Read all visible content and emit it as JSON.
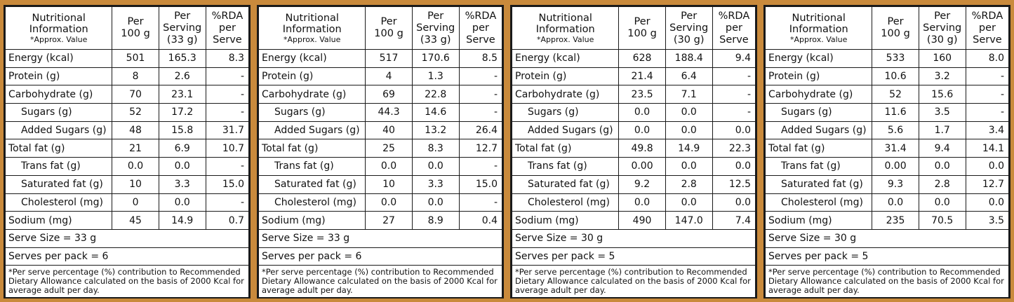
{
  "headers": {
    "info_line1": "Nutritional",
    "info_line2": "Information",
    "info_sub": "*Approx. Value",
    "per100_line1": "Per",
    "per100_line2": "100 g",
    "serving_line1": "Per",
    "serving_line2": "Serving",
    "rda_line1": "%RDA",
    "rda_line2": "per",
    "rda_line3": "Serve"
  },
  "footnote": "*Per serve percentage (%) contribution to Recommended Dietary Allowance calculated on the basis of 2000 Kcal for average adult per day.",
  "panels": [
    {
      "serving_size_label": "(33 g)",
      "rows": [
        {
          "label": "Energy (kcal)",
          "per100": "501",
          "serving": "165.3",
          "rda": "8.3"
        },
        {
          "label": "Protein (g)",
          "per100": "8",
          "serving": "2.6",
          "rda": "-"
        },
        {
          "label": "Carbohydrate (g)",
          "per100": "70",
          "serving": "23.1",
          "rda": "-"
        },
        {
          "label": "Sugars (g)",
          "per100": "52",
          "serving": "17.2",
          "rda": "-"
        },
        {
          "label": "Added Sugars (g)",
          "per100": "48",
          "serving": "15.8",
          "rda": "31.7"
        },
        {
          "label": "Total fat (g)",
          "per100": "21",
          "serving": "6.9",
          "rda": "10.7"
        },
        {
          "label": "Trans fat (g)",
          "per100": "0.0",
          "serving": "0.0",
          "rda": "-"
        },
        {
          "label": "Saturated fat (g)",
          "per100": "10",
          "serving": "3.3",
          "rda": "15.0"
        },
        {
          "label": "Cholesterol (mg)",
          "per100": "0",
          "serving": "0.0",
          "rda": "-"
        },
        {
          "label": "Sodium (mg)",
          "per100": "45",
          "serving": "14.9",
          "rda": "0.7"
        }
      ],
      "serve_size": "Serve Size = 33 g",
      "serves_per_pack": "Serves per pack = 6"
    },
    {
      "serving_size_label": "(33 g)",
      "rows": [
        {
          "label": "Energy (kcal)",
          "per100": "517",
          "serving": "170.6",
          "rda": "8.5"
        },
        {
          "label": "Protein (g)",
          "per100": "4",
          "serving": "1.3",
          "rda": "-"
        },
        {
          "label": "Carbohydrate (g)",
          "per100": "69",
          "serving": "22.8",
          "rda": "-"
        },
        {
          "label": "Sugars (g)",
          "per100": "44.3",
          "serving": "14.6",
          "rda": "-"
        },
        {
          "label": "Added Sugars (g)",
          "per100": "40",
          "serving": "13.2",
          "rda": "26.4"
        },
        {
          "label": "Total fat (g)",
          "per100": "25",
          "serving": "8.3",
          "rda": "12.7"
        },
        {
          "label": "Trans fat (g)",
          "per100": "0.0",
          "serving": "0.0",
          "rda": "-"
        },
        {
          "label": "Saturated fat (g)",
          "per100": "10",
          "serving": "3.3",
          "rda": "15.0"
        },
        {
          "label": "Cholesterol (mg)",
          "per100": "0.0",
          "serving": "0.0",
          "rda": "-"
        },
        {
          "label": "Sodium (mg)",
          "per100": "27",
          "serving": "8.9",
          "rda": "0.4"
        }
      ],
      "serve_size": "Serve Size = 33 g",
      "serves_per_pack": "Serves per pack = 6"
    },
    {
      "serving_size_label": "(30 g)",
      "rows": [
        {
          "label": "Energy (kcal)",
          "per100": "628",
          "serving": "188.4",
          "rda": "9.4"
        },
        {
          "label": "Protein (g)",
          "per100": "21.4",
          "serving": "6.4",
          "rda": "-"
        },
        {
          "label": "Carbohydrate (g)",
          "per100": "23.5",
          "serving": "7.1",
          "rda": "-"
        },
        {
          "label": "Sugars (g)",
          "per100": "0.0",
          "serving": "0.0",
          "rda": "-"
        },
        {
          "label": "Added Sugars (g)",
          "per100": "0.0",
          "serving": "0.0",
          "rda": "0.0"
        },
        {
          "label": "Total fat (g)",
          "per100": "49.8",
          "serving": "14.9",
          "rda": "22.3"
        },
        {
          "label": "Trans fat (g)",
          "per100": "0.00",
          "serving": "0.0",
          "rda": "0.0"
        },
        {
          "label": "Saturated fat (g)",
          "per100": "9.2",
          "serving": "2.8",
          "rda": "12.5"
        },
        {
          "label": "Cholesterol (mg)",
          "per100": "0.0",
          "serving": "0.0",
          "rda": "0.0"
        },
        {
          "label": "Sodium (mg)",
          "per100": "490",
          "serving": "147.0",
          "rda": "7.4"
        }
      ],
      "serve_size": "Serve Size = 30 g",
      "serves_per_pack": "Serves per pack = 5"
    },
    {
      "serving_size_label": "(30 g)",
      "rows": [
        {
          "label": "Energy (kcal)",
          "per100": "533",
          "serving": "160",
          "rda": "8.0"
        },
        {
          "label": "Protein (g)",
          "per100": "10.6",
          "serving": "3.2",
          "rda": "-"
        },
        {
          "label": "Carbohydrate (g)",
          "per100": "52",
          "serving": "15.6",
          "rda": "-"
        },
        {
          "label": "Sugars (g)",
          "per100": "11.6",
          "serving": "3.5",
          "rda": "-"
        },
        {
          "label": "Added Sugars (g)",
          "per100": "5.6",
          "serving": "1.7",
          "rda": "3.4"
        },
        {
          "label": "Total fat (g)",
          "per100": "31.4",
          "serving": "9.4",
          "rda": "14.1"
        },
        {
          "label": "Trans fat (g)",
          "per100": "0.00",
          "serving": "0.0",
          "rda": "0.0"
        },
        {
          "label": "Saturated fat (g)",
          "per100": "9.3",
          "serving": "2.8",
          "rda": "12.7"
        },
        {
          "label": "Cholesterol (mg)",
          "per100": "0.0",
          "serving": "0.0",
          "rda": "0.0"
        },
        {
          "label": "Sodium (mg)",
          "per100": "235",
          "serving": "70.5",
          "rda": "3.5"
        }
      ],
      "serve_size": "Serve Size = 30 g",
      "serves_per_pack": "Serves per pack = 5"
    }
  ],
  "colors": {
    "background": "#c98a3c",
    "panel": "#ffffff",
    "border": "#1a1a1a"
  }
}
